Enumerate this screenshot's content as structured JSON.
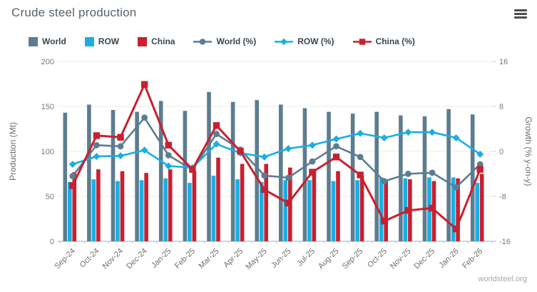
{
  "header": {
    "title": "Crude steel production"
  },
  "menu": {
    "icon": "hamburger-icon"
  },
  "footer": {
    "source": "worldsteel.org"
  },
  "colors": {
    "world": "#5c7d91",
    "row": "#1aaee5",
    "china": "#c8202f",
    "grid": "#ebebeb",
    "axis_line": "#b6c9d2",
    "tick_text": "#7a7a7a",
    "month_text": "#6f6f6f",
    "axis_title_text": "#6f6f6f",
    "title_text": "#57636d",
    "legend_text": "#3b474f",
    "source_text": "#a8a8a8",
    "menu_icon": "#4d4d4d",
    "background": "#ffffff"
  },
  "legend": [
    {
      "label": "World",
      "type": "bar",
      "marker": "square-swatch",
      "color": "#5c7d91"
    },
    {
      "label": "ROW",
      "type": "bar",
      "marker": "square-swatch",
      "color": "#1aaee5"
    },
    {
      "label": "China",
      "type": "bar",
      "marker": "square-swatch",
      "color": "#c8202f"
    },
    {
      "label": "World (%)",
      "type": "line",
      "marker": "circle",
      "color": "#5c7d91"
    },
    {
      "label": "ROW (%)",
      "type": "line",
      "marker": "diamond",
      "color": "#1aaee5"
    },
    {
      "label": "China (%)",
      "type": "line",
      "marker": "square",
      "color": "#c8202f"
    }
  ],
  "chart_data": {
    "type": "bar",
    "subtype": "bar-line-combo",
    "title": "Crude steel production",
    "grid": true,
    "legend_position": "top",
    "categories": [
      "Sep-24",
      "Oct-24",
      "Nov-24",
      "Dec-24",
      "Jan-25",
      "Feb-25",
      "Mar-25",
      "Apr-25",
      "May-25",
      "Jun-25",
      "Jul-25",
      "Aug-25",
      "Sep-25",
      "Oct-25",
      "Nov-25",
      "Dec-25",
      "Jan-26",
      "Feb-26"
    ],
    "bar_series": [
      {
        "name": "World",
        "color": "#5c7d91",
        "values": [
          143,
          152,
          146,
          144,
          156,
          145,
          166,
          155,
          157,
          152,
          148,
          144,
          142,
          144,
          140,
          139,
          147,
          141
        ]
      },
      {
        "name": "ROW",
        "color": "#1aaee5",
        "values": [
          66,
          69,
          67,
          68,
          70,
          65,
          73,
          69,
          66,
          68,
          68,
          67,
          68,
          71,
          70,
          71,
          71,
          65
        ]
      },
      {
        "name": "China",
        "color": "#c8202f",
        "values": [
          77,
          80,
          78,
          76,
          80,
          78,
          93,
          86,
          86,
          82,
          79,
          78,
          73,
          69,
          69,
          67,
          70,
          75
        ]
      }
    ],
    "line_series": [
      {
        "name": "World (%)",
        "marker": "circle",
        "color": "#5c7d91",
        "values": [
          -4.4,
          1.1,
          0.9,
          6.0,
          -0.7,
          -3.3,
          3.1,
          0.3,
          -4.3,
          -4.7,
          -1.8,
          0.9,
          -1.0,
          -5.3,
          -4.0,
          -3.8,
          -6.4,
          -2.3
        ]
      },
      {
        "name": "ROW (%)",
        "marker": "diamond",
        "color": "#1aaee5",
        "values": [
          -2.3,
          -0.9,
          -0.8,
          0.2,
          -2.6,
          -2.9,
          1.3,
          -0.3,
          -1.0,
          0.5,
          1.1,
          2.2,
          3.2,
          2.4,
          3.4,
          3.4,
          2.4,
          -0.5
        ]
      },
      {
        "name": "China (%)",
        "marker": "square",
        "color": "#c8202f",
        "values": [
          -6.1,
          2.8,
          2.5,
          11.9,
          1.1,
          -3.2,
          4.6,
          0.0,
          -6.8,
          -9.2,
          -3.7,
          -1.0,
          -4.2,
          -12.4,
          -10.5,
          -10.1,
          -13.8,
          -3.2
        ]
      }
    ],
    "left_axis": {
      "label": "Production (Mt)",
      "ticks": [
        0,
        50,
        100,
        150,
        200
      ],
      "range": [
        0,
        200
      ]
    },
    "right_axis": {
      "label": "Growth (% y-on-y)",
      "ticks": [
        -16,
        -8,
        0,
        8,
        16
      ],
      "range": [
        -16,
        16
      ]
    }
  }
}
